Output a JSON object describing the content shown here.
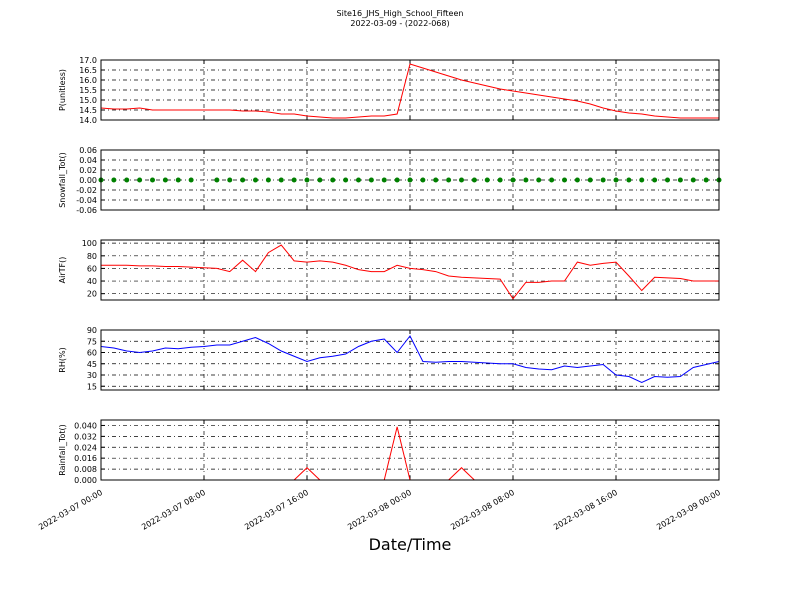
{
  "chart_data": {
    "type": "line",
    "title": "Site16_JHS_High_School_Fifteen",
    "subtitle": "2022-03-09 - (2022-068)",
    "xlabel": "Date/Time",
    "xlim": [
      "2022-03-07 00:00",
      "2022-03-09 00:00"
    ],
    "xticks": [
      "2022-03-07 00:00",
      "2022-03-07 08:00",
      "2022-03-07 16:00",
      "2022-03-08 00:00",
      "2022-03-08 08:00",
      "2022-03-08 16:00",
      "2022-03-09 00:00"
    ],
    "grid": true,
    "x": [
      "2022-03-07 00:00",
      "2022-03-07 01:00",
      "2022-03-07 02:00",
      "2022-03-07 03:00",
      "2022-03-07 04:00",
      "2022-03-07 05:00",
      "2022-03-07 06:00",
      "2022-03-07 07:00",
      "2022-03-07 08:00",
      "2022-03-07 09:00",
      "2022-03-07 10:00",
      "2022-03-07 11:00",
      "2022-03-07 12:00",
      "2022-03-07 13:00",
      "2022-03-07 14:00",
      "2022-03-07 15:00",
      "2022-03-07 16:00",
      "2022-03-07 17:00",
      "2022-03-07 18:00",
      "2022-03-07 19:00",
      "2022-03-07 20:00",
      "2022-03-07 21:00",
      "2022-03-07 22:00",
      "2022-03-07 23:00",
      "2022-03-08 00:00",
      "2022-03-08 01:00",
      "2022-03-08 02:00",
      "2022-03-08 03:00",
      "2022-03-08 04:00",
      "2022-03-08 05:00",
      "2022-03-08 06:00",
      "2022-03-08 07:00",
      "2022-03-08 08:00",
      "2022-03-08 09:00",
      "2022-03-08 10:00",
      "2022-03-08 11:00",
      "2022-03-08 12:00",
      "2022-03-08 13:00",
      "2022-03-08 14:00",
      "2022-03-08 15:00",
      "2022-03-08 16:00",
      "2022-03-08 17:00",
      "2022-03-08 18:00",
      "2022-03-08 19:00",
      "2022-03-08 20:00",
      "2022-03-08 21:00",
      "2022-03-08 22:00",
      "2022-03-08 23:00",
      "2022-03-09 00:00"
    ],
    "panels": [
      {
        "type": "line",
        "ylabel": "P(unitless)",
        "color": "#ff0000",
        "ylim": [
          14,
          17
        ],
        "yticks": [
          {
            "value": 14,
            "label": "14.0"
          },
          14.5,
          {
            "value": 15,
            "label": "15.0"
          },
          15.5,
          {
            "value": 16,
            "label": "16.0"
          },
          16.5,
          {
            "value": 17,
            "label": "17.0"
          }
        ],
        "values": [
          14.6,
          14.55,
          14.55,
          14.6,
          14.5,
          14.5,
          14.5,
          14.5,
          14.5,
          14.5,
          14.5,
          14.45,
          14.45,
          14.4,
          14.3,
          14.3,
          14.2,
          14.15,
          14.1,
          14.1,
          14.15,
          14.2,
          14.2,
          14.3,
          16.8,
          16.6,
          16.4,
          16.2,
          16.0,
          15.85,
          15.7,
          15.55,
          15.45,
          15.35,
          15.25,
          15.15,
          15.05,
          14.95,
          14.8,
          14.6,
          14.45,
          14.35,
          14.3,
          14.2,
          14.15,
          14.1,
          14.1,
          14.1,
          14.1
        ]
      },
      {
        "type": "scatter",
        "ylabel": "Snowfall_Tot()",
        "color": "#008000",
        "ylim": [
          -0.06,
          0.06
        ],
        "yticks": [
          -0.06,
          -0.04,
          -0.02,
          {
            "value": 0,
            "label": "0.00"
          },
          0.02,
          0.04,
          0.06
        ],
        "values": [
          0,
          0,
          0,
          0,
          0,
          0,
          0,
          0,
          null,
          0,
          0,
          0,
          0,
          0,
          0,
          0,
          0,
          0,
          0,
          0,
          0,
          0,
          0,
          0,
          0,
          0,
          0,
          0,
          0,
          0,
          0,
          0,
          0,
          0,
          0,
          0,
          0,
          0,
          0,
          0,
          0,
          0,
          0,
          0,
          0,
          0,
          0,
          0,
          0
        ]
      },
      {
        "type": "line",
        "ylabel": "AirTF()",
        "color": "#ff0000",
        "ylim": [
          10,
          105
        ],
        "yticks": [
          20,
          40,
          60,
          80,
          100
        ],
        "values": [
          65,
          65,
          65,
          64,
          64,
          63,
          63,
          62,
          61,
          60,
          55,
          73,
          55,
          85,
          97,
          72,
          70,
          72,
          70,
          65,
          58,
          55,
          55,
          65,
          60,
          58,
          55,
          48,
          46,
          45,
          44,
          43,
          12,
          38,
          38,
          40,
          40,
          70,
          65,
          68,
          70,
          48,
          25,
          46,
          45,
          44,
          40,
          40,
          40
        ]
      },
      {
        "type": "line",
        "ylabel": "RH(%)",
        "color": "#0000ff",
        "ylim": [
          10,
          90
        ],
        "yticks": [
          15,
          30,
          45,
          60,
          75,
          90
        ],
        "values": [
          68,
          66,
          62,
          60,
          62,
          66,
          65,
          67,
          68,
          70,
          70,
          75,
          80,
          72,
          62,
          55,
          48,
          53,
          55,
          58,
          68,
          75,
          78,
          60,
          82,
          48,
          47,
          48,
          48,
          47,
          46,
          45,
          45,
          40,
          38,
          37,
          42,
          40,
          42,
          44,
          30,
          28,
          20,
          28,
          27,
          28,
          40,
          44,
          48
        ]
      },
      {
        "type": "line",
        "ylabel": "Rainfall_Tot()",
        "color": "#ff0000",
        "ylim": [
          0,
          0.044
        ],
        "yticks": [
          {
            "value": 0,
            "label": "0.000"
          },
          0.008,
          0.016,
          0.024,
          0.032,
          {
            "value": 0.04,
            "label": "0.040"
          }
        ],
        "values": [
          0,
          0,
          0,
          0,
          0,
          0,
          0,
          0,
          0,
          0,
          0,
          0,
          0,
          0,
          0,
          0,
          0.009,
          0,
          0,
          0,
          0,
          0,
          0,
          0.039,
          0,
          0,
          0,
          0,
          0.009,
          0,
          0,
          0,
          0,
          0,
          0,
          0,
          0,
          0,
          0,
          0,
          0,
          0,
          0,
          0,
          0,
          0,
          0,
          0,
          0
        ]
      }
    ]
  }
}
